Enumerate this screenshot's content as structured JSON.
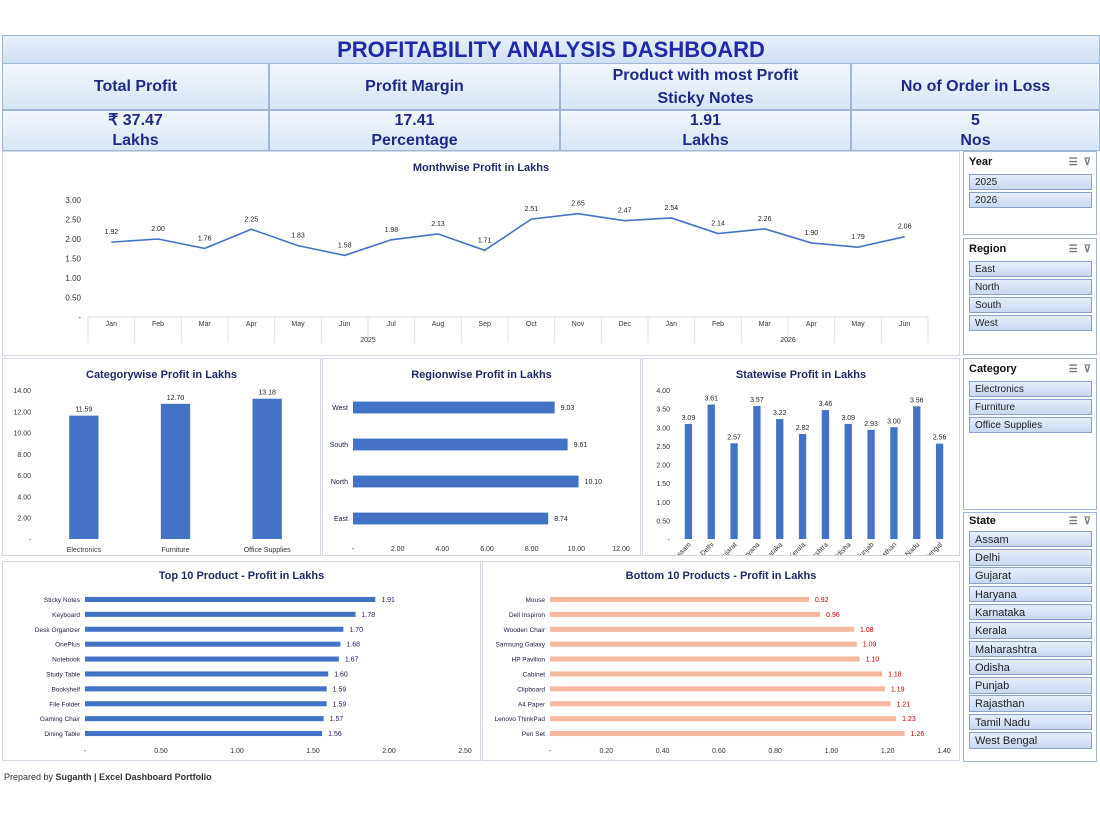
{
  "title": "PROFITABILITY ANALYSIS DASHBOARD",
  "kpis": [
    {
      "label": "Total Profit",
      "sublabel": "",
      "value": "₹ 37.47",
      "unit": "Lakhs"
    },
    {
      "label": "Profit Margin",
      "sublabel": "",
      "value": "17.41",
      "unit": "Percentage"
    },
    {
      "label": "Product with most Profit",
      "sublabel": "Sticky Notes",
      "value": "1.91",
      "unit": "Lakhs"
    },
    {
      "label": "No of Order in Loss",
      "sublabel": "",
      "value": "5",
      "unit": "Nos"
    }
  ],
  "slicers": {
    "year": {
      "title": "Year",
      "items": [
        "2025",
        "2026"
      ]
    },
    "region": {
      "title": "Region",
      "items": [
        "East",
        "North",
        "South",
        "West"
      ]
    },
    "category": {
      "title": "Category",
      "items": [
        "Electronics",
        "Furniture",
        "Office Supplies"
      ]
    },
    "state": {
      "title": "State",
      "items": [
        "Assam",
        "Delhi",
        "Gujarat",
        "Haryana",
        "Karnataka",
        "Kerala",
        "Maharashtra",
        "Odisha",
        "Punjab",
        "Rajasthan",
        "Tamil Nadu",
        "West Bengal"
      ]
    }
  },
  "footer": {
    "prefix": "Prepared by",
    "text": "Suganth | Excel Dashboard Portfolio"
  },
  "chart_data": [
    {
      "id": "monthwise",
      "type": "line",
      "title": "Monthwise Profit in Lakhs",
      "categories": [
        "Jan",
        "Feb",
        "Mar",
        "Apr",
        "May",
        "Jun",
        "Jul",
        "Aug",
        "Sep",
        "Oct",
        "Nov",
        "Dec",
        "Jan",
        "Feb",
        "Mar",
        "Apr",
        "May",
        "Jun"
      ],
      "groups": [
        {
          "label": "2025",
          "count": 12
        },
        {
          "label": "2026",
          "count": 6
        }
      ],
      "values": [
        1.92,
        2.0,
        1.76,
        2.25,
        1.83,
        1.58,
        1.98,
        2.13,
        1.71,
        2.51,
        2.65,
        2.47,
        2.54,
        2.14,
        2.26,
        1.9,
        1.79,
        2.06
      ],
      "yticks": [
        "-",
        "0.50",
        "1.00",
        "1.50",
        "2.00",
        "2.50",
        "3.00"
      ],
      "ylim": [
        0,
        3
      ],
      "color": "#4472c4"
    },
    {
      "id": "category",
      "type": "bar",
      "title": "Categorywise Profit in Lakhs",
      "categories": [
        "Electronics",
        "Furniture",
        "Office Supplies"
      ],
      "values": [
        11.59,
        12.7,
        13.18
      ],
      "yticks": [
        "-",
        "2.00",
        "4.00",
        "6.00",
        "8.00",
        "10.00",
        "12.00",
        "14.00"
      ],
      "ylim": [
        0,
        14
      ],
      "color": "#4472c4"
    },
    {
      "id": "region",
      "type": "bar",
      "orientation": "horizontal",
      "title": "Regionwise Profit in Lakhs",
      "categories": [
        "West",
        "South",
        "North",
        "East"
      ],
      "values": [
        9.03,
        9.61,
        10.1,
        8.74
      ],
      "xticks": [
        "-",
        "2.00",
        "4.00",
        "6.00",
        "8.00",
        "10.00",
        "12.00"
      ],
      "xlim": [
        0,
        12
      ],
      "color": "#4472c4"
    },
    {
      "id": "state",
      "type": "bar",
      "title": "Statewise Profit in Lakhs",
      "categories": [
        "Assam",
        "Delhi",
        "Gujarat",
        "Haryana",
        "Karnataka",
        "Kerala",
        "Maharashtra",
        "Odisha",
        "Punjab",
        "Rajasthan",
        "Tamil Nadu",
        "West Bengal"
      ],
      "values": [
        3.09,
        3.61,
        2.57,
        3.57,
        3.22,
        2.82,
        3.46,
        3.09,
        2.93,
        3.0,
        3.56,
        2.56
      ],
      "yticks": [
        "-",
        "0.50",
        "1.00",
        "1.50",
        "2.00",
        "2.50",
        "3.00",
        "3.50",
        "4.00"
      ],
      "ylim": [
        0,
        4
      ],
      "color": "#4472c4"
    },
    {
      "id": "top10",
      "type": "bar",
      "orientation": "horizontal",
      "title": "Top 10 Product - Profit in Lakhs",
      "categories": [
        "Sticky Notes",
        "Keyboard",
        "Desk Organizer",
        "OnePlus",
        "Notebook",
        "Study Table",
        "Bookshelf",
        "File Folder",
        "Gaming Chair",
        "Dining Table"
      ],
      "values": [
        1.91,
        1.78,
        1.7,
        1.68,
        1.67,
        1.6,
        1.59,
        1.59,
        1.57,
        1.56
      ],
      "xticks": [
        "-",
        "0.50",
        "1.00",
        "1.50",
        "2.00",
        "2.50"
      ],
      "xlim": [
        0,
        2.5
      ],
      "color": "#4472c4",
      "label_color": "#1a1a66"
    },
    {
      "id": "bottom10",
      "type": "bar",
      "orientation": "horizontal",
      "title": "Bottom 10 Products - Profit in Lakhs",
      "categories": [
        "Mouse",
        "Dell Inspiron",
        "Wooden Chair",
        "Samsung Galaxy",
        "HP Pavilion",
        "Cabinet",
        "Clipboard",
        "A4 Paper",
        "Lenovo ThinkPad",
        "Pen Set"
      ],
      "values": [
        0.92,
        0.96,
        1.08,
        1.09,
        1.1,
        1.18,
        1.19,
        1.21,
        1.23,
        1.26
      ],
      "xticks": [
        "-",
        "0.20",
        "0.40",
        "0.60",
        "0.80",
        "1.00",
        "1.20",
        "1.40"
      ],
      "xlim": [
        0,
        1.4
      ],
      "color": "#f4b9a0",
      "label_color": "#c00000"
    }
  ]
}
